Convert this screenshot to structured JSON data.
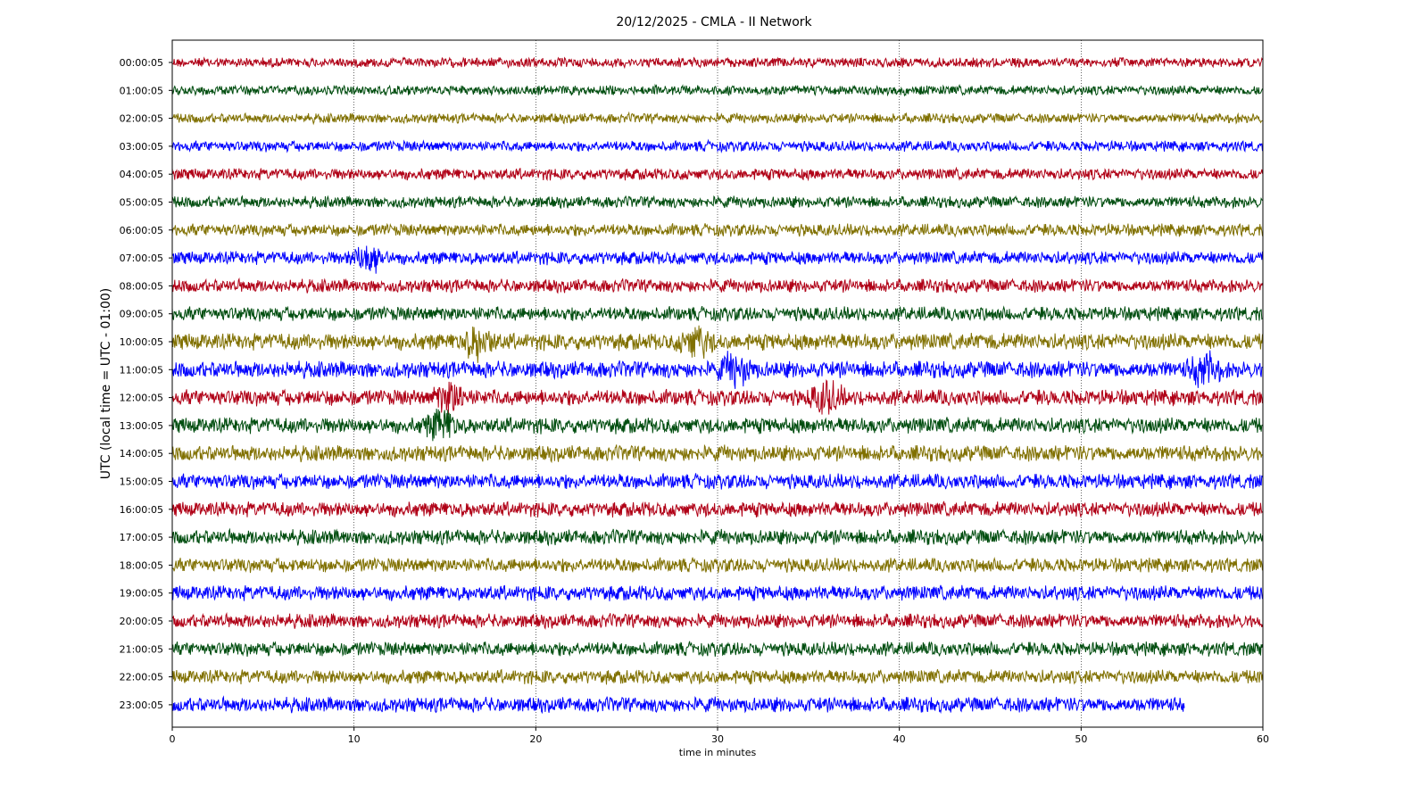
{
  "chart_data": {
    "type": "line",
    "title": "20/12/2025 - CMLA - II Network",
    "xlabel": "time in minutes",
    "ylabel": "UTC (local time = UTC - 01:00)",
    "xlim": [
      0,
      60
    ],
    "x_ticks": [
      0,
      10,
      20,
      30,
      40,
      50,
      60
    ],
    "grid": "vertical dotted at x ticks",
    "colors": [
      "#b00016",
      "#004d0f",
      "#807000",
      "#0000ff"
    ],
    "rows": [
      {
        "label": "00:00:05",
        "end_minute": 60,
        "amplitude": 0.55,
        "events": []
      },
      {
        "label": "01:00:05",
        "end_minute": 60,
        "amplitude": 0.55,
        "events": []
      },
      {
        "label": "02:00:05",
        "end_minute": 60,
        "amplitude": 0.55,
        "events": []
      },
      {
        "label": "03:00:05",
        "end_minute": 60,
        "amplitude": 0.6,
        "events": []
      },
      {
        "label": "04:00:05",
        "end_minute": 60,
        "amplitude": 0.65,
        "events": []
      },
      {
        "label": "05:00:05",
        "end_minute": 60,
        "amplitude": 0.65,
        "events": []
      },
      {
        "label": "06:00:05",
        "end_minute": 60,
        "amplitude": 0.7,
        "events": []
      },
      {
        "label": "07:00:05",
        "end_minute": 60,
        "amplitude": 0.75,
        "events": [
          10.8
        ]
      },
      {
        "label": "08:00:05",
        "end_minute": 60,
        "amplitude": 0.75,
        "events": []
      },
      {
        "label": "09:00:05",
        "end_minute": 60,
        "amplitude": 0.8,
        "events": []
      },
      {
        "label": "10:00:05",
        "end_minute": 60,
        "amplitude": 0.95,
        "events": [
          16.8,
          28.8
        ]
      },
      {
        "label": "11:00:05",
        "end_minute": 60,
        "amplitude": 0.95,
        "events": [
          31,
          56.8
        ]
      },
      {
        "label": "12:00:05",
        "end_minute": 60,
        "amplitude": 0.9,
        "events": [
          15.3,
          36
        ]
      },
      {
        "label": "13:00:05",
        "end_minute": 60,
        "amplitude": 0.9,
        "events": [
          14.8
        ]
      },
      {
        "label": "14:00:05",
        "end_minute": 60,
        "amplitude": 0.9,
        "events": []
      },
      {
        "label": "15:00:05",
        "end_minute": 60,
        "amplitude": 0.85,
        "events": []
      },
      {
        "label": "16:00:05",
        "end_minute": 60,
        "amplitude": 0.85,
        "events": []
      },
      {
        "label": "17:00:05",
        "end_minute": 60,
        "amplitude": 0.85,
        "events": []
      },
      {
        "label": "18:00:05",
        "end_minute": 60,
        "amplitude": 0.8,
        "events": []
      },
      {
        "label": "19:00:05",
        "end_minute": 60,
        "amplitude": 0.85,
        "events": []
      },
      {
        "label": "20:00:05",
        "end_minute": 60,
        "amplitude": 0.8,
        "events": []
      },
      {
        "label": "21:00:05",
        "end_minute": 60,
        "amplitude": 0.8,
        "events": []
      },
      {
        "label": "22:00:05",
        "end_minute": 60,
        "amplitude": 0.8,
        "events": []
      },
      {
        "label": "23:00:05",
        "end_minute": 55.7,
        "amplitude": 0.85,
        "events": []
      }
    ]
  }
}
